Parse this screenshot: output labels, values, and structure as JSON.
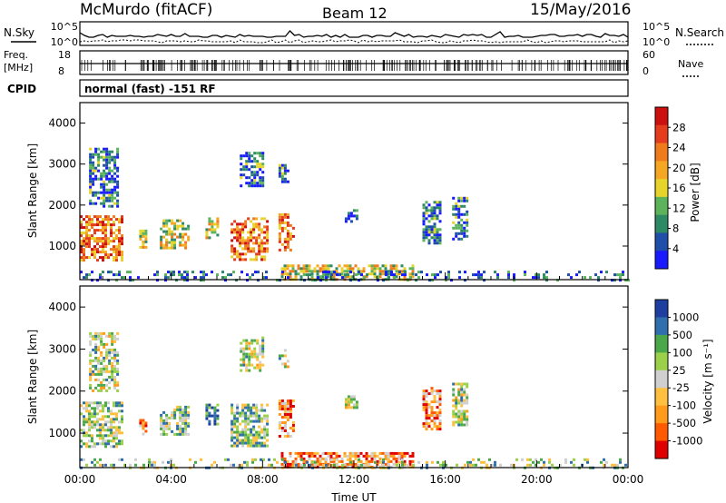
{
  "header": {
    "station": "McMurdo (fitACF)",
    "beam": "Beam 12",
    "date": "15/May/2016"
  },
  "strips": {
    "nsky_label": "N.Sky",
    "nsky_ticks": [
      "10^5",
      "10^0"
    ],
    "nsearch_label": "N.Search",
    "nsearch_ticks": [
      "10^5",
      "10^0"
    ],
    "freq_label_1": "Freq.",
    "freq_label_2": "[MHz]",
    "freq_ticks": [
      "18",
      "8"
    ],
    "nave_label": "Nave",
    "nave_ticks": [
      "60",
      "0"
    ],
    "cpid_label": "CPID",
    "cpid_text": "normal (fast) -151 RF"
  },
  "colors": {
    "power": [
      "#1a1aff",
      "#1f4fa8",
      "#2e8a64",
      "#5cb35c",
      "#e6d42a",
      "#f5a623",
      "#f07b1d",
      "#e63c1e",
      "#cc1010"
    ],
    "velocity": [
      "#e00000",
      "#ff5a00",
      "#ff9a1a",
      "#ffc040",
      "#cfcfcf",
      "#9ad04a",
      "#4aa84a",
      "#2f6fae",
      "#1f3fa0"
    ]
  },
  "chart_data": [
    {
      "type": "heatmap",
      "name": "power",
      "xlabel": "Time UT",
      "ylabel": "Slant Range [km]",
      "x_ticks": [
        "00:00",
        "04:00",
        "08:00",
        "12:00",
        "16:00",
        "20:00",
        "00:00"
      ],
      "x_range_hours": [
        0,
        24
      ],
      "y_ticks": [
        1000,
        2000,
        3000,
        4000
      ],
      "ylim": [
        180,
        4500
      ],
      "colorbar_label": "Power [dB]",
      "colorbar_ticks": [
        "28",
        "24",
        "20",
        "16",
        "12",
        "8",
        "4"
      ],
      "colorbar_range": [
        0,
        32
      ],
      "echo_regions": [
        {
          "t0": 0.0,
          "t1": 1.8,
          "r0": 650,
          "r1": 1750,
          "level": "high"
        },
        {
          "t0": 0.4,
          "t1": 1.6,
          "r0": 2000,
          "r1": 3400,
          "level": "low"
        },
        {
          "t0": 2.6,
          "t1": 2.9,
          "r0": 1000,
          "r1": 1400,
          "level": "mid"
        },
        {
          "t0": 3.5,
          "t1": 4.8,
          "r0": 950,
          "r1": 1650,
          "level": "mid"
        },
        {
          "t0": 5.5,
          "t1": 6.0,
          "r0": 1200,
          "r1": 1700,
          "level": "mid"
        },
        {
          "t0": 6.6,
          "t1": 8.2,
          "r0": 700,
          "r1": 1700,
          "level": "high"
        },
        {
          "t0": 7.0,
          "t1": 8.0,
          "r0": 2500,
          "r1": 3300,
          "level": "low"
        },
        {
          "t0": 8.7,
          "t1": 9.4,
          "r0": 900,
          "r1": 1800,
          "level": "high"
        },
        {
          "t0": 8.7,
          "t1": 9.1,
          "r0": 2600,
          "r1": 3000,
          "level": "low"
        },
        {
          "t0": 8.8,
          "t1": 14.6,
          "r0": 200,
          "r1": 550,
          "level": "mid"
        },
        {
          "t0": 11.6,
          "t1": 12.1,
          "r0": 1600,
          "r1": 1900,
          "level": "low"
        },
        {
          "t0": 15.0,
          "t1": 15.8,
          "r0": 1100,
          "r1": 2100,
          "level": "low"
        },
        {
          "t0": 16.3,
          "t1": 17.0,
          "r0": 1200,
          "r1": 2200,
          "level": "low"
        },
        {
          "t0": 0.0,
          "t1": 24.0,
          "r0": 180,
          "r1": 400,
          "level": "noise"
        }
      ]
    },
    {
      "type": "heatmap",
      "name": "velocity",
      "xlabel": "Time UT",
      "ylabel": "Slant Range [km]",
      "x_ticks": [
        "00:00",
        "04:00",
        "08:00",
        "12:00",
        "16:00",
        "20:00",
        "00:00"
      ],
      "x_range_hours": [
        0,
        24
      ],
      "y_ticks": [
        1000,
        2000,
        3000,
        4000
      ],
      "ylim": [
        180,
        4500
      ],
      "colorbar_label": "Velocity [m s⁻¹]",
      "colorbar_ticks": [
        "1000",
        "500",
        "100",
        "25",
        "-25",
        "-100",
        "-500",
        "-1000"
      ],
      "echo_regions": [
        {
          "t0": 0.0,
          "t1": 1.8,
          "r0": 650,
          "r1": 1750,
          "level": "mixed"
        },
        {
          "t0": 0.4,
          "t1": 1.6,
          "r0": 2000,
          "r1": 3400,
          "level": "slow"
        },
        {
          "t0": 2.6,
          "t1": 2.9,
          "r0": 1000,
          "r1": 1400,
          "level": "toward"
        },
        {
          "t0": 3.5,
          "t1": 4.8,
          "r0": 950,
          "r1": 1650,
          "level": "mixed"
        },
        {
          "t0": 5.5,
          "t1": 6.0,
          "r0": 1200,
          "r1": 1700,
          "level": "away"
        },
        {
          "t0": 6.6,
          "t1": 8.2,
          "r0": 700,
          "r1": 1700,
          "level": "mixed"
        },
        {
          "t0": 7.0,
          "t1": 8.0,
          "r0": 2500,
          "r1": 3300,
          "level": "slow"
        },
        {
          "t0": 8.7,
          "t1": 9.4,
          "r0": 900,
          "r1": 1800,
          "level": "toward"
        },
        {
          "t0": 8.7,
          "t1": 9.1,
          "r0": 2600,
          "r1": 3000,
          "level": "slow"
        },
        {
          "t0": 8.8,
          "t1": 14.6,
          "r0": 200,
          "r1": 550,
          "level": "toward"
        },
        {
          "t0": 11.6,
          "t1": 12.1,
          "r0": 1600,
          "r1": 1900,
          "level": "slow"
        },
        {
          "t0": 15.0,
          "t1": 15.8,
          "r0": 1100,
          "r1": 2100,
          "level": "toward"
        },
        {
          "t0": 16.3,
          "t1": 17.0,
          "r0": 1200,
          "r1": 2200,
          "level": "slow"
        },
        {
          "t0": 0.0,
          "t1": 24.0,
          "r0": 180,
          "r1": 400,
          "level": "noise"
        }
      ]
    }
  ]
}
